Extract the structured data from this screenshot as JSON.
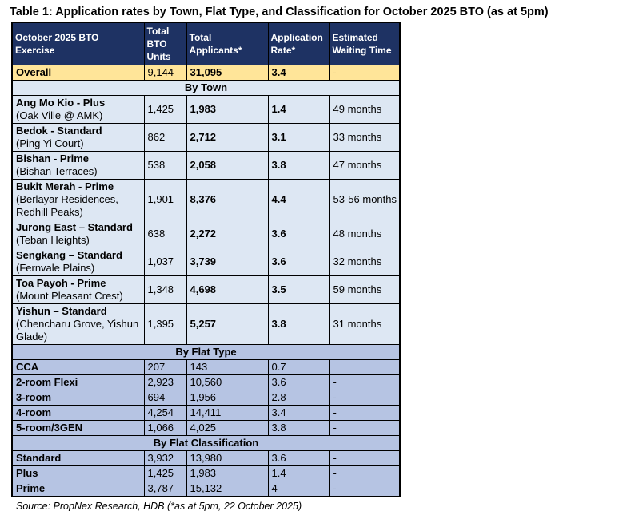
{
  "title": "Table 1: Application rates by Town, Flat Type, and Classification for October 2025 BTO (as at 5pm)",
  "source": "Source: PropNex Research, HDB (*as at 5pm, 22 October 2025)",
  "colors": {
    "header_bg": "#1e3263",
    "header_text": "#ffffff",
    "overall_row_bg": "#ffe599",
    "town_section_bg": "#dde7f3",
    "flat_section_bg": "#b6c4e3",
    "border": "#000000"
  },
  "table": {
    "headers": [
      "October 2025 BTO Exercise",
      "Total BTO Units",
      "Total Applicants*",
      "Application Rate*",
      "Estimated Waiting Time"
    ],
    "overall": {
      "label": "Overall",
      "units": "9,144",
      "applicants": "31,095",
      "rate": "3.4",
      "wait": "-"
    },
    "sections": [
      {
        "label": "By Town",
        "theme": "town",
        "rows": [
          {
            "name": "Ang Mo Kio - Plus",
            "sub": "(Oak Ville @ AMK)",
            "units": "1,425",
            "applicants": "1,983",
            "rate": "1.4",
            "wait": "49 months"
          },
          {
            "name": "Bedok - Standard",
            "sub": "(Ping Yi Court)",
            "units": "862",
            "applicants": "2,712",
            "rate": "3.1",
            "wait": "33 months"
          },
          {
            "name": "Bishan - Prime",
            "sub": "(Bishan Terraces)",
            "units": "538",
            "applicants": "2,058",
            "rate": "3.8",
            "wait": "47 months"
          },
          {
            "name": "Bukit Merah - Prime",
            "sub": "(Berlayar Residences, Redhill Peaks)",
            "units": "1,901",
            "applicants": "8,376",
            "rate": "4.4",
            "wait": "53-56 months"
          },
          {
            "name": "Jurong East – Standard",
            "sub": "(Teban Heights)",
            "units": "638",
            "applicants": "2,272",
            "rate": "3.6",
            "wait": "48 months"
          },
          {
            "name": "Sengkang – Standard",
            "sub": "(Fernvale Plains)",
            "units": "1,037",
            "applicants": "3,739",
            "rate": "3.6",
            "wait": "32 months"
          },
          {
            "name": "Toa Payoh - Prime",
            "sub": "(Mount Pleasant Crest)",
            "units": "1,348",
            "applicants": "4,698",
            "rate": "3.5",
            "wait": "59 months"
          },
          {
            "name": "Yishun – Standard",
            "sub": "(Chencharu Grove, Yishun Glade)",
            "units": "1,395",
            "applicants": "5,257",
            "rate": "3.8",
            "wait": "31 months"
          }
        ]
      },
      {
        "label": "By Flat Type",
        "theme": "flat",
        "rows": [
          {
            "name": "CCA",
            "sub": "",
            "units": "207",
            "applicants": "143",
            "rate": "0.7",
            "wait": ""
          },
          {
            "name": "2-room Flexi",
            "sub": "",
            "units": "2,923",
            "applicants": "10,560",
            "rate": "3.6",
            "wait": "-"
          },
          {
            "name": "3-room",
            "sub": "",
            "units": "694",
            "applicants": "1,956",
            "rate": "2.8",
            "wait": "-"
          },
          {
            "name": "4-room",
            "sub": "",
            "units": "4,254",
            "applicants": "14,411",
            "rate": "3.4",
            "wait": "-"
          },
          {
            "name": "5-room/3GEN",
            "sub": "",
            "units": "1,066",
            "applicants": "4,025",
            "rate": "3.8",
            "wait": "-"
          }
        ]
      },
      {
        "label": "By Flat Classification",
        "theme": "flat",
        "rows": [
          {
            "name": "Standard",
            "sub": "",
            "units": "3,932",
            "applicants": "13,980",
            "rate": "3.6",
            "wait": "-"
          },
          {
            "name": "Plus",
            "sub": "",
            "units": "1,425",
            "applicants": "1,983",
            "rate": "1.4",
            "wait": "-"
          },
          {
            "name": "Prime",
            "sub": "",
            "units": "3,787",
            "applicants": "15,132",
            "rate": "4",
            "wait": "-"
          }
        ]
      }
    ]
  }
}
